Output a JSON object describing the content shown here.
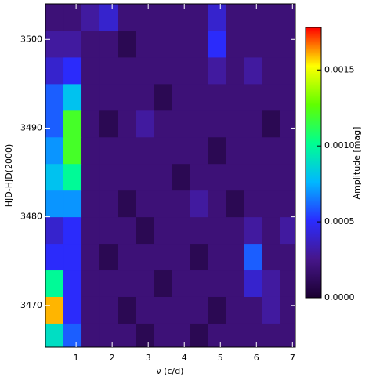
{
  "chart_data": {
    "type": "heatmap",
    "xlabel": "ν (c/d)",
    "ylabel": "HJD-HJD(2000)",
    "colorbar_label": "Amplitude [mag]",
    "x": [
      0.4,
      0.9,
      1.4,
      1.9,
      2.4,
      2.9,
      3.4,
      3.9,
      4.4,
      4.9,
      5.4,
      5.9,
      6.4,
      6.9
    ],
    "y": [
      3466.5,
      3469.5,
      3472.5,
      3475.5,
      3478.5,
      3481.5,
      3484.5,
      3487.5,
      3490.5,
      3493.5,
      3496.5,
      3499.5,
      3502.5
    ],
    "z": [
      [
        0.0009,
        0.0006,
        0.0002,
        0.0002,
        0.0002,
        0.0001,
        0.0002,
        0.0002,
        0.0001,
        0.0002,
        0.0002,
        0.0002,
        0.0002,
        0.0002
      ],
      [
        0.0016,
        0.0005,
        0.0002,
        0.0002,
        0.0001,
        0.0002,
        0.0002,
        0.0002,
        0.0002,
        0.0001,
        0.0002,
        0.0002,
        0.0003,
        0.0002
      ],
      [
        0.001,
        0.0005,
        0.0002,
        0.0002,
        0.0002,
        0.0002,
        0.0001,
        0.0002,
        0.0002,
        0.0002,
        0.0002,
        0.0004,
        0.0003,
        0.0002
      ],
      [
        0.0005,
        0.0005,
        0.0002,
        0.0001,
        0.0002,
        0.0002,
        0.0002,
        0.0002,
        0.0001,
        0.0002,
        0.0002,
        0.0006,
        0.0002,
        0.0002
      ],
      [
        0.0004,
        0.0005,
        0.0002,
        0.0002,
        0.0002,
        0.0001,
        0.0002,
        0.0002,
        0.0002,
        0.0002,
        0.0002,
        0.0003,
        0.0002,
        0.0003
      ],
      [
        0.0007,
        0.0007,
        0.0002,
        0.0002,
        0.0001,
        0.0002,
        0.0002,
        0.0002,
        0.0003,
        0.0002,
        0.0001,
        0.0002,
        0.0002,
        0.0002
      ],
      [
        0.0008,
        0.001,
        0.0002,
        0.0002,
        0.0002,
        0.0002,
        0.0002,
        0.0001,
        0.0002,
        0.0002,
        0.0002,
        0.0002,
        0.0002,
        0.0002
      ],
      [
        0.0007,
        0.0012,
        0.0002,
        0.0002,
        0.0002,
        0.0002,
        0.0002,
        0.0002,
        0.0002,
        0.0001,
        0.0002,
        0.0002,
        0.0002,
        0.0002
      ],
      [
        0.0006,
        0.0012,
        0.0002,
        0.0001,
        0.0002,
        0.0003,
        0.0002,
        0.0002,
        0.0002,
        0.0002,
        0.0002,
        0.0002,
        0.0001,
        0.0002
      ],
      [
        0.0006,
        0.0008,
        0.0002,
        0.0002,
        0.0002,
        0.0002,
        0.0001,
        0.0002,
        0.0002,
        0.0002,
        0.0002,
        0.0002,
        0.0002,
        0.0002
      ],
      [
        0.0004,
        0.0005,
        0.0002,
        0.0002,
        0.0002,
        0.0002,
        0.0002,
        0.0002,
        0.0002,
        0.0003,
        0.0002,
        0.0003,
        0.0002,
        0.0002
      ],
      [
        0.0003,
        0.0003,
        0.0002,
        0.0002,
        0.0001,
        0.0002,
        0.0002,
        0.0002,
        0.0002,
        0.0005,
        0.0002,
        0.0002,
        0.0002,
        0.0002
      ],
      [
        0.0002,
        0.0002,
        0.0003,
        0.0004,
        0.0002,
        0.0002,
        0.0002,
        0.0002,
        0.0002,
        0.0004,
        0.0002,
        0.0002,
        0.0002,
        0.0002
      ]
    ],
    "xlim": [
      0.15,
      7.08
    ],
    "xticks": [
      1,
      2,
      3,
      4,
      5,
      6,
      7
    ],
    "ylim": [
      3465.3,
      3504
    ],
    "yticks": [
      3470,
      3480,
      3490,
      3500
    ],
    "clim": [
      0,
      0.00178
    ],
    "cticks": [
      {
        "value": 0,
        "label": "0.0000"
      },
      {
        "value": 0.0005,
        "label": "0.0005"
      },
      {
        "value": 0.001,
        "label": "0.0010"
      },
      {
        "value": 0.0015,
        "label": "0.0015"
      }
    ],
    "colormap": [
      "#1a0030",
      "#46168a",
      "#2a2cff",
      "#00b8ff",
      "#00ff90",
      "#60ff00",
      "#ffff00",
      "#ff0000"
    ]
  }
}
